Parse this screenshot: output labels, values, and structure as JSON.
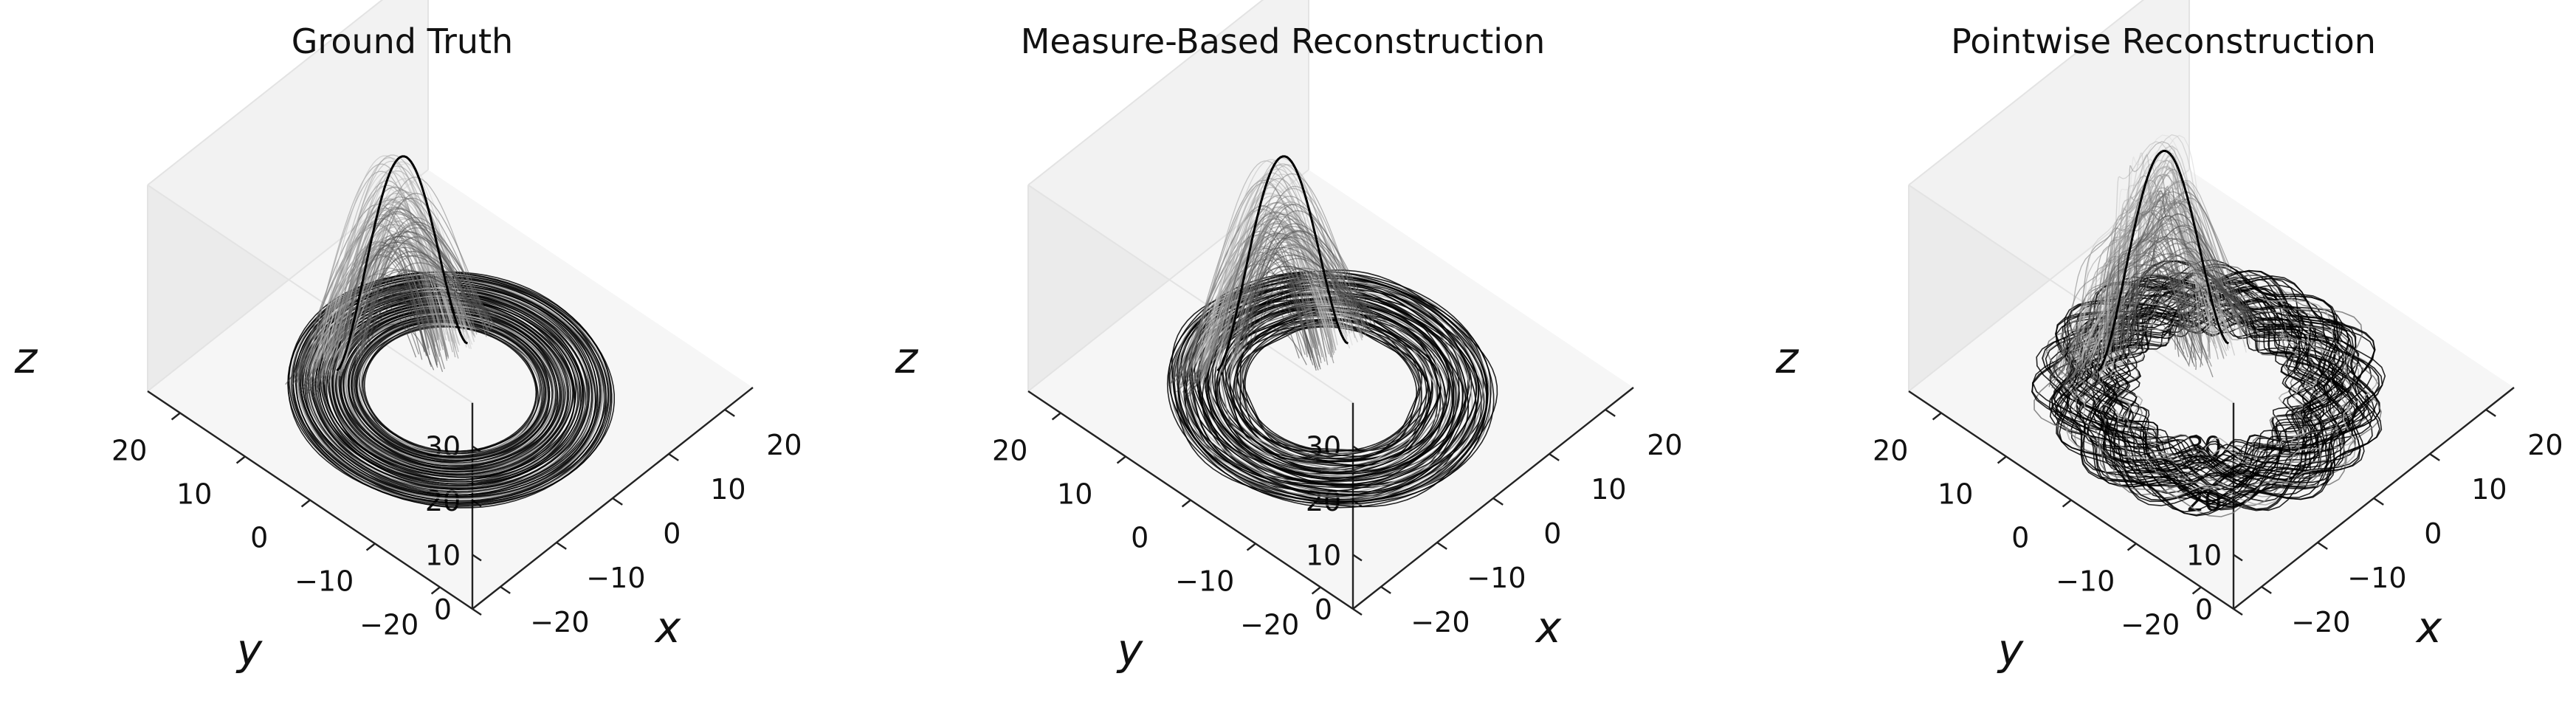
{
  "chart_data": [
    {
      "type": "line",
      "projection": "3d",
      "title": "Ground Truth",
      "xlabel": "x",
      "ylabel": "y",
      "zlabel": "z",
      "xlim": [
        -25,
        25
      ],
      "ylim": [
        -25,
        25
      ],
      "zlim": [
        0,
        38
      ],
      "xticks": [
        "−20",
        "−10",
        "0",
        "10",
        "20"
      ],
      "yticks": [
        "−20",
        "−10",
        "0",
        "10",
        "20"
      ],
      "zticks": [
        "0",
        "10",
        "20",
        "30"
      ],
      "grid": false,
      "line_color": "#000000",
      "attractor": {
        "ring_inner_radius": 10,
        "ring_outer_radius": 19,
        "peak_x": 0,
        "peak_y": 10,
        "peak_z": 37
      }
    },
    {
      "type": "line",
      "projection": "3d",
      "title": "Measure-Based Reconstruction",
      "xlabel": "x",
      "ylabel": "y",
      "zlabel": "z",
      "xlim": [
        -25,
        25
      ],
      "ylim": [
        -25,
        25
      ],
      "zlim": [
        0,
        38
      ],
      "xticks": [
        "−20",
        "−10",
        "0",
        "10",
        "20"
      ],
      "yticks": [
        "−20",
        "−10",
        "0",
        "10",
        "20"
      ],
      "zticks": [
        "0",
        "10",
        "20",
        "30"
      ],
      "grid": false,
      "line_color": "#000000",
      "attractor": {
        "ring_inner_radius": 10,
        "ring_outer_radius": 19,
        "peak_x": 0,
        "peak_y": 10,
        "peak_z": 37
      }
    },
    {
      "type": "line",
      "projection": "3d",
      "title": "Pointwise Reconstruction",
      "xlabel": "x",
      "ylabel": "y",
      "zlabel": "z",
      "xlim": [
        -25,
        25
      ],
      "ylim": [
        -25,
        25
      ],
      "zlim": [
        0,
        38
      ],
      "xticks": [
        "−20",
        "−10",
        "0",
        "10",
        "20"
      ],
      "yticks": [
        "−20",
        "−10",
        "0",
        "10",
        "20"
      ],
      "zticks": [
        "0",
        "10",
        "20",
        "30"
      ],
      "grid": false,
      "line_color": "#000000",
      "attractor": {
        "ring_inner_radius": 10,
        "ring_outer_radius": 19,
        "peak_x": 0,
        "peak_y": 10,
        "peak_z": 38
      }
    }
  ]
}
